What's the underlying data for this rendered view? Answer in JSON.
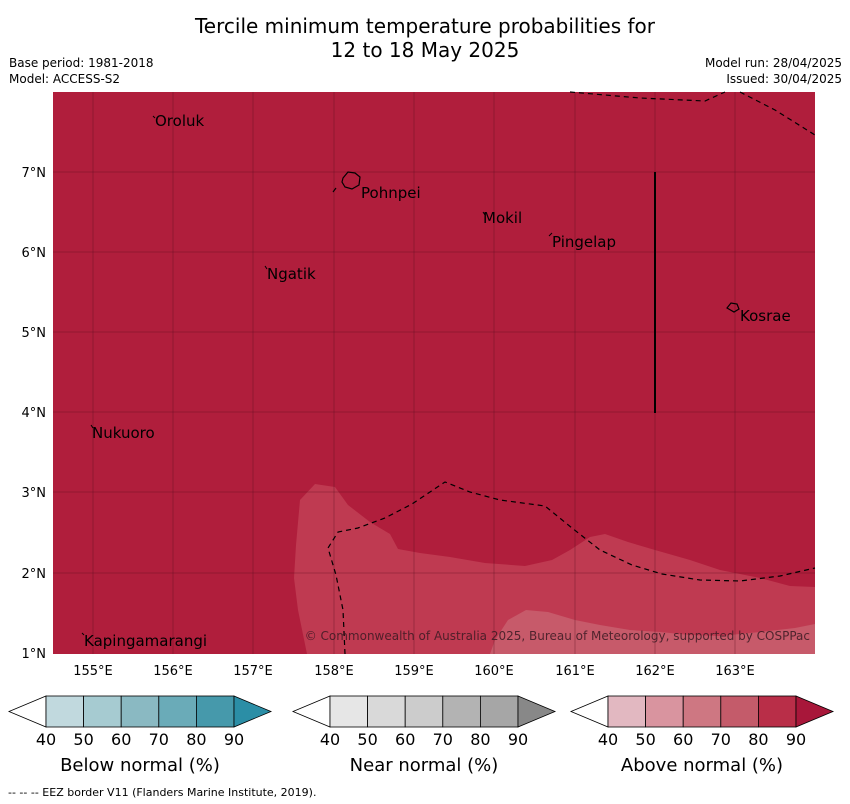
{
  "title": {
    "line1": "Tercile minimum temperature probabilities for",
    "line2": "12 to 18 May 2025"
  },
  "meta": {
    "base_period": "Base period: 1981-2018",
    "model": "Model: ACCESS-S2",
    "model_run": "Model run: 28/04/2025",
    "issued": "Issued: 30/04/2025"
  },
  "map": {
    "lon_labels": [
      "155°E",
      "156°E",
      "157°E",
      "158°E",
      "159°E",
      "160°E",
      "161°E",
      "162°E",
      "163°E"
    ],
    "lat_labels": [
      "7°N",
      "6°N",
      "5°N",
      "4°N",
      "3°N",
      "2°N",
      "1°N"
    ],
    "places": {
      "oroluk": "Oroluk",
      "pohnpei": "Pohnpei",
      "mokil": "Mokil",
      "pingelap": "Pingelap",
      "ngatik": "Ngatik",
      "kosrae": "Kosrae",
      "nukuoro": "Nukuoro",
      "kapingamarangi": "Kapingamarangi"
    },
    "copyright": "© Commonwealth of Australia 2025, Bureau of Meteorology, supported by COSPPac",
    "colors": {
      "above_90": "#b01e3c",
      "above_80": "#bf3a51",
      "above_70": "#c75a6a"
    }
  },
  "colorbars": {
    "ticks": [
      "40",
      "50",
      "60",
      "70",
      "80",
      "90"
    ],
    "below": {
      "label": "Below normal (%)",
      "colors": [
        "#ffffff",
        "#c1d9de",
        "#a6cbd1",
        "#8ab9c2",
        "#6aabb8",
        "#4699ab",
        "#2b8ea6"
      ]
    },
    "near": {
      "label": "Near normal (%)",
      "colors": [
        "#ffffff",
        "#e6e6e6",
        "#d9d9d9",
        "#cccccc",
        "#b3b3b3",
        "#a6a6a6",
        "#888888"
      ]
    },
    "above": {
      "label": "Above normal (%)",
      "colors": [
        "#ffffff",
        "#e2b8c1",
        "#d9949f",
        "#ce7782",
        "#c45b6a",
        "#b92e48",
        "#a8173a"
      ]
    }
  },
  "footer": "--  --  -- EEZ border V11 (Flanders Marine Institute, 2019)."
}
